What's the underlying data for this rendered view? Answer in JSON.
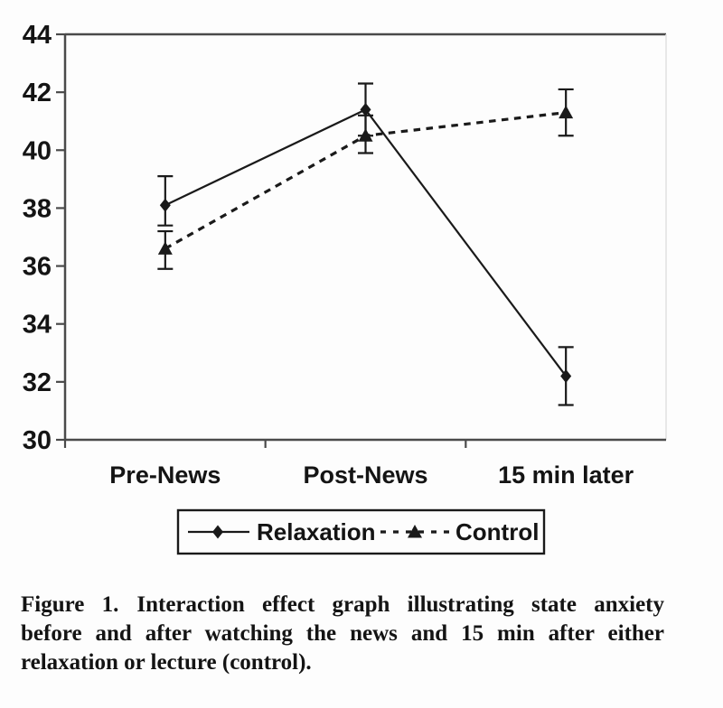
{
  "chart_data": {
    "type": "line",
    "categories": [
      "Pre-News",
      "Post-News",
      "15 min later"
    ],
    "series": [
      {
        "name": "Relaxation",
        "style": "solid",
        "marker": "diamond",
        "values": [
          38.1,
          41.4,
          32.2
        ],
        "error_low": [
          37.4,
          40.5,
          31.2
        ],
        "error_high": [
          39.1,
          42.3,
          33.2
        ]
      },
      {
        "name": "Control",
        "style": "dashed",
        "marker": "triangle",
        "values": [
          36.6,
          40.5,
          41.3
        ],
        "error_low": [
          35.9,
          39.9,
          40.5
        ],
        "error_high": [
          37.2,
          41.2,
          42.1
        ]
      }
    ],
    "title": "",
    "xlabel": "",
    "ylabel": "",
    "ylim": [
      30,
      44
    ],
    "yticks": [
      30,
      32,
      34,
      36,
      38,
      40,
      42,
      44
    ],
    "grid": false,
    "error_bars": true,
    "legend_position": "bottom-boxed",
    "colors": {
      "line": "#1a1a1a",
      "text": "#141414",
      "axis": "#4a4a4a",
      "frame_light": "#e2e2e2",
      "background": "#fdfdfd"
    }
  },
  "caption": {
    "label": "Figure 1.",
    "line1": "Interaction effect graph illustrating state anxiety",
    "line2": "before and after watching the news and 15 min after either",
    "line3": "relaxation or lecture (control)."
  }
}
